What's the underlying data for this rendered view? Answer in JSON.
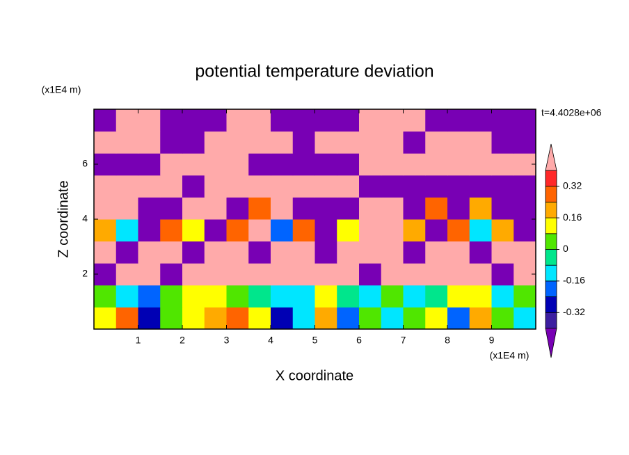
{
  "chart_data": {
    "type": "contour",
    "title": "potential temperature deviation",
    "xlabel": "X coordinate",
    "ylabel": "Z coordinate",
    "xunit": "(x1E4 m)",
    "yunit": "(x1E4 m)",
    "annotation": "t=4.4028e+06",
    "xlim": [
      0,
      10
    ],
    "ylim": [
      0,
      8
    ],
    "xticks": [
      1,
      2,
      3,
      4,
      5,
      6,
      7,
      8,
      9
    ],
    "yticks": [
      2,
      4,
      6
    ],
    "x": [
      0.25,
      0.75,
      1.25,
      1.75,
      2.25,
      2.75,
      3.25,
      3.75,
      4.25,
      4.75,
      5.25,
      5.75,
      6.25,
      6.75,
      7.25,
      7.75,
      8.25,
      8.75,
      9.25,
      9.75
    ],
    "y": [
      0.4,
      1.2,
      2.0,
      2.8,
      3.6,
      4.4,
      5.2,
      6.0,
      6.8,
      7.6
    ],
    "z": [
      [
        0.1,
        0.3,
        -0.3,
        0.05,
        0.1,
        0.2,
        0.25,
        0.1,
        -0.3,
        -0.1,
        0.2,
        -0.2,
        0.05,
        -0.1,
        0.05,
        0.1,
        -0.2,
        0.2,
        0.05,
        -0.1
      ],
      [
        0.05,
        -0.1,
        -0.2,
        0.05,
        0.1,
        0.15,
        0.05,
        -0.05,
        -0.1,
        -0.15,
        0.1,
        -0.05,
        -0.1,
        0.05,
        -0.1,
        -0.05,
        0.1,
        0.15,
        -0.1,
        0.05
      ],
      [
        -0.5,
        0.5,
        0.5,
        -0.5,
        0.5,
        0.5,
        0.5,
        0.5,
        0.5,
        0.5,
        0.5,
        0.5,
        -0.5,
        0.5,
        0.5,
        0.5,
        0.5,
        0.5,
        -0.5,
        0.5
      ],
      [
        0.5,
        -0.5,
        0.5,
        0.5,
        -0.5,
        0.5,
        0.5,
        -0.5,
        0.5,
        0.5,
        -0.5,
        0.5,
        0.5,
        0.5,
        -0.5,
        0.5,
        0.5,
        -0.5,
        0.5,
        0.5
      ],
      [
        0.2,
        -0.1,
        -0.5,
        0.3,
        0.1,
        -0.5,
        0.25,
        0.5,
        -0.2,
        0.3,
        -0.5,
        0.1,
        0.5,
        0.5,
        0.2,
        -0.5,
        0.3,
        -0.1,
        0.2,
        -0.5
      ],
      [
        0.5,
        0.5,
        -0.5,
        -0.5,
        0.5,
        0.5,
        -0.5,
        0.3,
        0.5,
        -0.5,
        -0.5,
        -0.5,
        0.5,
        0.5,
        -0.5,
        0.3,
        -0.5,
        0.2,
        -0.5,
        -0.5
      ],
      [
        0.5,
        0.5,
        0.5,
        0.5,
        -0.5,
        0.5,
        0.5,
        0.5,
        0.5,
        0.5,
        0.5,
        0.5,
        -0.5,
        -0.5,
        -0.5,
        -0.5,
        -0.5,
        -0.5,
        -0.5,
        -0.5
      ],
      [
        -0.5,
        -0.5,
        -0.5,
        0.5,
        0.5,
        0.5,
        0.5,
        -0.5,
        -0.5,
        -0.5,
        -0.5,
        -0.5,
        0.5,
        0.5,
        0.5,
        0.5,
        0.5,
        0.5,
        0.5,
        0.5
      ],
      [
        0.5,
        0.5,
        0.5,
        -0.5,
        -0.5,
        0.5,
        0.5,
        0.5,
        0.5,
        -0.5,
        0.5,
        0.5,
        0.5,
        0.5,
        -0.5,
        0.5,
        0.5,
        0.5,
        -0.5,
        -0.5
      ],
      [
        -0.5,
        0.5,
        0.5,
        -0.5,
        -0.5,
        -0.5,
        0.5,
        0.5,
        -0.5,
        -0.5,
        -0.5,
        -0.5,
        0.5,
        0.5,
        0.5,
        -0.5,
        -0.5,
        -0.5,
        -0.5,
        -0.5
      ]
    ],
    "levels": [
      -0.4,
      -0.32,
      -0.24,
      -0.16,
      -0.08,
      0,
      0.08,
      0.16,
      0.24,
      0.32,
      0.4
    ],
    "colors": [
      "#7800b4",
      "#3c1ea0",
      "#0000b4",
      "#0064ff",
      "#00e6ff",
      "#00e68c",
      "#50e600",
      "#ffff00",
      "#ffaa00",
      "#ff6400",
      "#ff2828",
      "#ffaaaa"
    ],
    "colorbar_ticks": [
      -0.32,
      -0.16,
      0,
      0.16,
      0.32
    ]
  }
}
